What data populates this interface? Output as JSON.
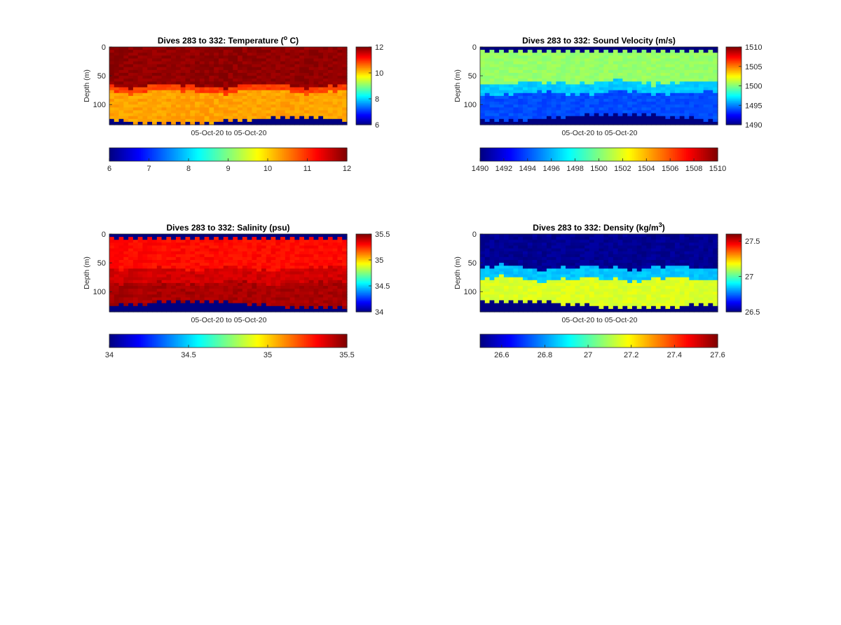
{
  "chart_data": [
    {
      "id": "temperature",
      "type": "heatmap",
      "title": "Dives 283 to 332: Temperature (",
      "title_sup": "o",
      "title_tail": " C)",
      "xlabel": "05-Oct-20 to 05-Oct-20",
      "ylabel": "Depth (m)",
      "yticks": [
        0,
        50,
        100
      ],
      "ylim": [
        0,
        135
      ],
      "ncols": 50,
      "depth_max": 135,
      "clim": [
        6,
        12
      ],
      "side_cbar_ticks": [
        6,
        8,
        10,
        12
      ],
      "side_cbar_labels": [
        "6",
        "8",
        "10",
        "12"
      ],
      "bottom_cbar_ticks": [
        6,
        7,
        8,
        9,
        10,
        11,
        12
      ],
      "bottom_cbar_labels": [
        "6",
        "7",
        "8",
        "9",
        "10",
        "11",
        "12"
      ],
      "layers": [
        {
          "top_depth": 0,
          "value": 11.9
        },
        {
          "top_depth": 68,
          "value": 10.9
        },
        {
          "top_depth": 78,
          "value": 10.3
        }
      ],
      "surface_depth": 2,
      "bottom_depth_range": [
        123,
        133
      ],
      "missing_value": 6
    },
    {
      "id": "sound-velocity",
      "type": "heatmap",
      "title": "Dives 283 to 332: Sound Velocity (m/s)",
      "xlabel": "05-Oct-20 to 05-Oct-20",
      "ylabel": "Depth (m)",
      "yticks": [
        0,
        50,
        100
      ],
      "ylim": [
        0,
        135
      ],
      "ncols": 50,
      "depth_max": 135,
      "clim": [
        1490,
        1510
      ],
      "side_cbar_ticks": [
        1490,
        1495,
        1500,
        1505,
        1510
      ],
      "side_cbar_labels": [
        "1490",
        "1495",
        "1500",
        "1505",
        "1510"
      ],
      "bottom_cbar_ticks": [
        1490,
        1492,
        1494,
        1496,
        1498,
        1500,
        1502,
        1504,
        1506,
        1508,
        1510
      ],
      "bottom_cbar_labels": [
        "1490",
        "1492",
        "1494",
        "1496",
        "1498",
        "1500",
        "1502",
        "1504",
        "1506",
        "1508",
        "1510"
      ],
      "layers": [
        {
          "top_depth": 0,
          "value": 1500.5
        },
        {
          "top_depth": 62,
          "value": 1496.5
        },
        {
          "top_depth": 80,
          "value": 1494
        }
      ],
      "surface_depth": 8,
      "bottom_depth_range": [
        117,
        128
      ],
      "missing_value": 1490
    },
    {
      "id": "salinity",
      "type": "heatmap",
      "title": "Dives 283 to 332: Salinity (psu)",
      "xlabel": "05-Oct-20 to 05-Oct-20",
      "ylabel": "Depth (m)",
      "yticks": [
        0,
        50,
        100
      ],
      "ylim": [
        0,
        135
      ],
      "ncols": 50,
      "depth_max": 135,
      "clim": [
        34,
        35.5
      ],
      "side_cbar_ticks": [
        34,
        34.5,
        35,
        35.5
      ],
      "side_cbar_labels": [
        "34",
        "34.5",
        "35",
        "35.5"
      ],
      "bottom_cbar_ticks": [
        34,
        34.5,
        35,
        35.5
      ],
      "bottom_cbar_labels": [
        "34",
        "34.5",
        "35",
        "35.5"
      ],
      "layers": [
        {
          "top_depth": 0,
          "value": 35.3
        },
        {
          "top_depth": 60,
          "value": 35.38
        },
        {
          "top_depth": 85,
          "value": 35.44
        }
      ],
      "surface_depth": 8,
      "bottom_depth_range": [
        117,
        128
      ],
      "missing_value": 34
    },
    {
      "id": "density",
      "type": "heatmap",
      "title": "Dives 283 to 332: Density (kg/m",
      "title_sup": "3",
      "title_tail": ")",
      "xlabel": "05-Oct-20 to 05-Oct-20",
      "ylabel": "Depth (m)",
      "yticks": [
        0,
        50,
        100
      ],
      "ylim": [
        0,
        135
      ],
      "ncols": 50,
      "depth_max": 135,
      "clim": [
        26.5,
        27.6
      ],
      "side_cbar_ticks": [
        26.5,
        27,
        27.5
      ],
      "side_cbar_labels": [
        "26.5",
        "27",
        "27.5"
      ],
      "bottom_cbar_ticks": [
        26.6,
        26.8,
        27,
        27.2,
        27.4,
        27.6
      ],
      "bottom_cbar_labels": [
        "26.6",
        "26.8",
        "27",
        "27.2",
        "27.4",
        "27.6"
      ],
      "layers": [
        {
          "top_depth": 0,
          "value": 26.52
        },
        {
          "top_depth": 58,
          "value": 26.85
        },
        {
          "top_depth": 78,
          "value": 27.15
        }
      ],
      "surface_depth": 0,
      "bottom_depth_range": [
        117,
        128
      ],
      "missing_value": 26.5
    }
  ]
}
